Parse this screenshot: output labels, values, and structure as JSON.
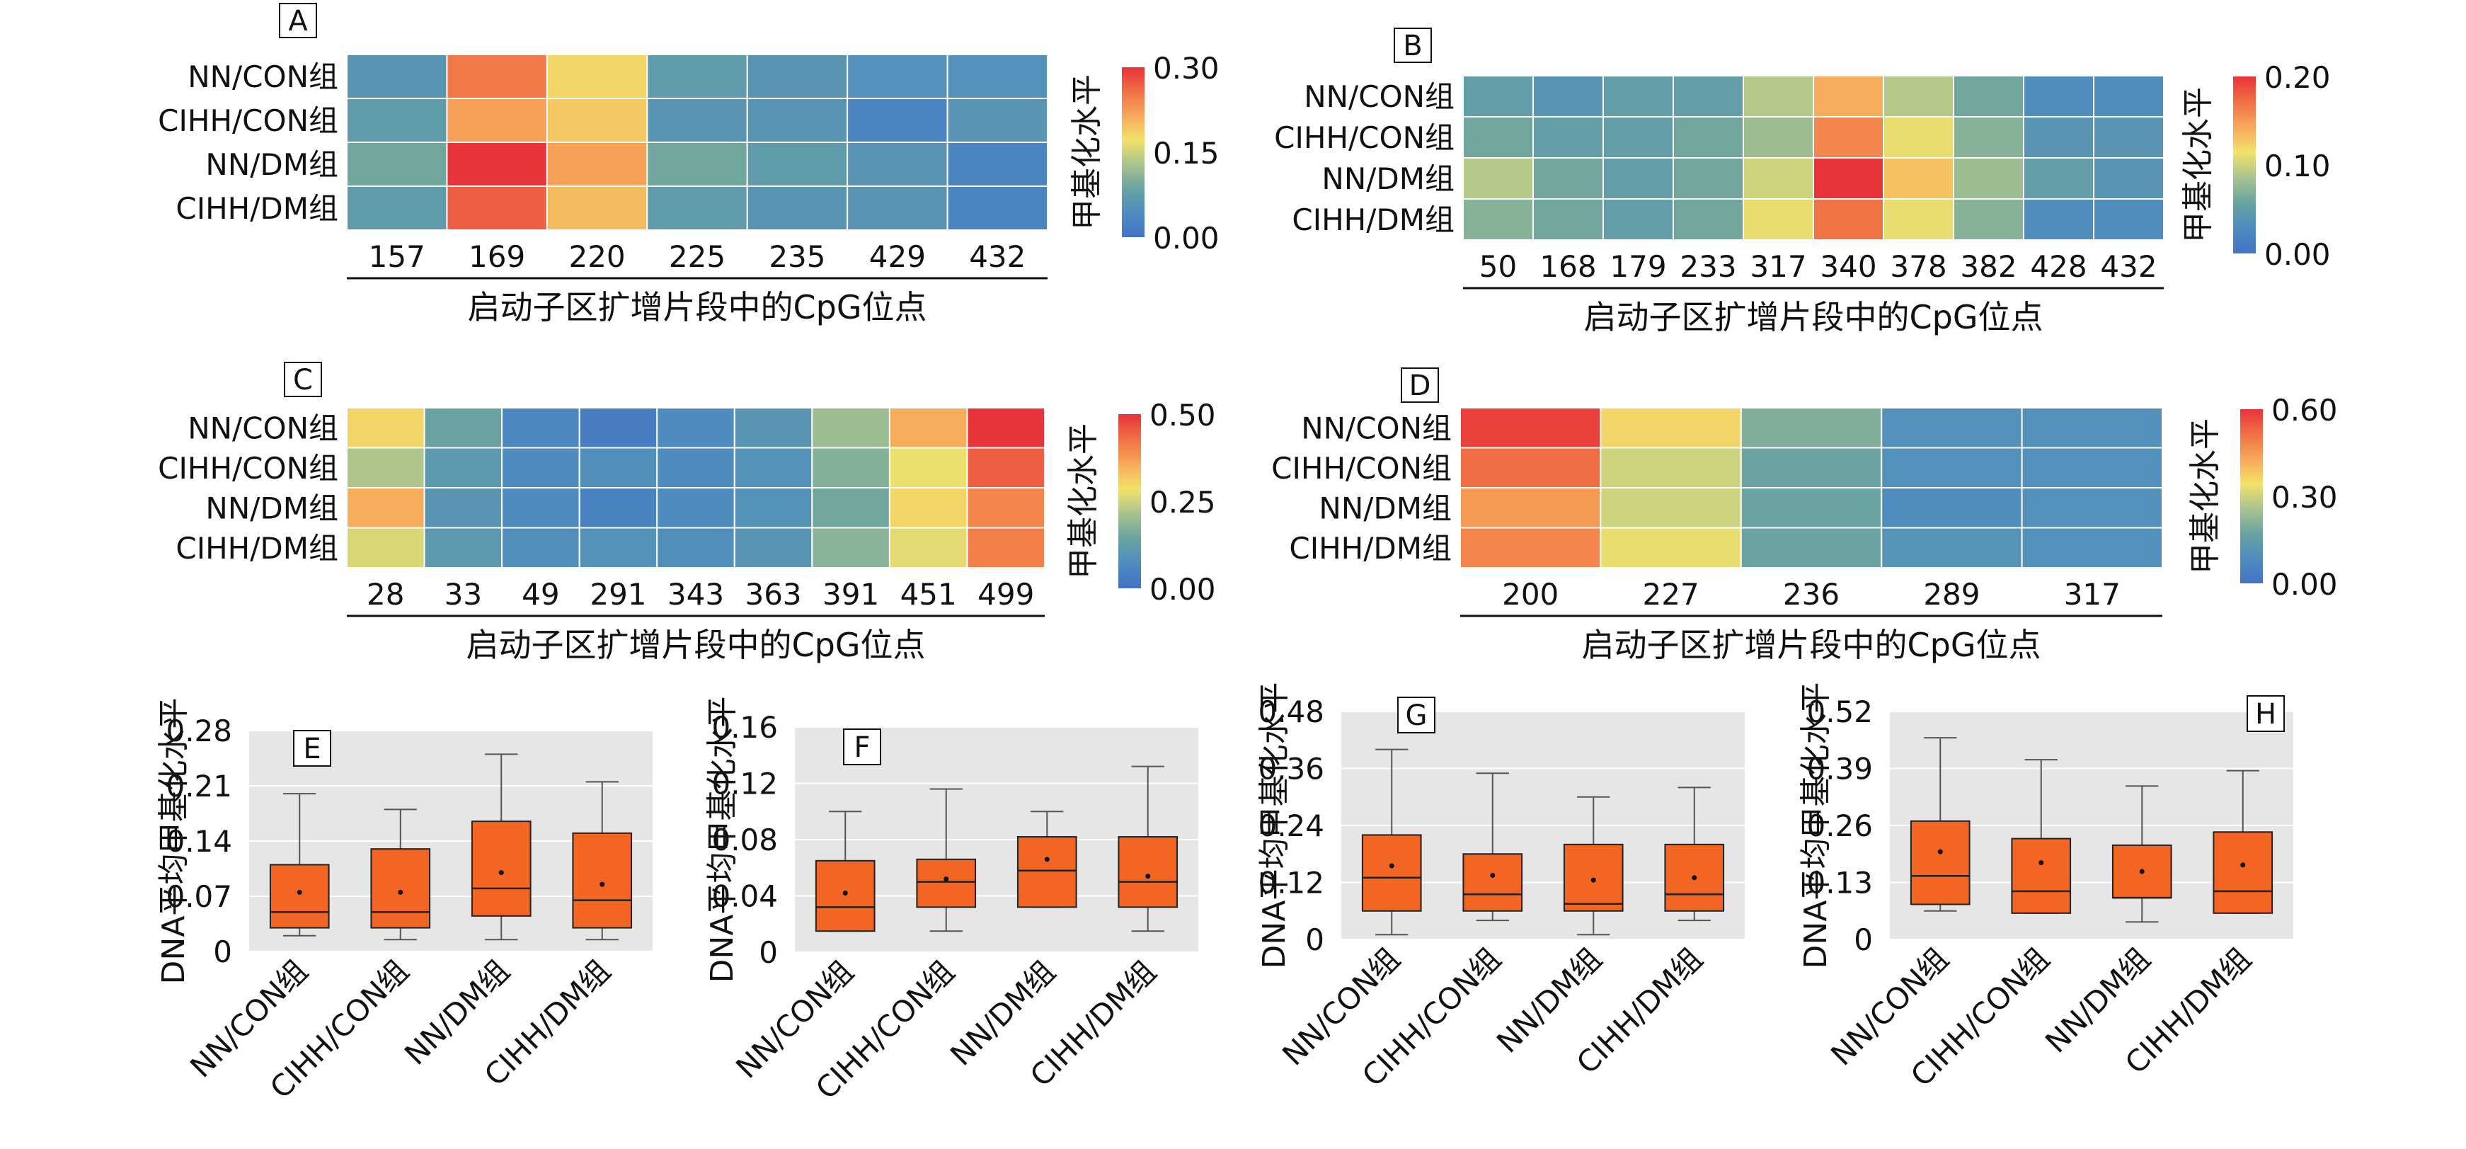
{
  "colorscale": [
    "#4472c4",
    "#4e8cbf",
    "#6aa3a0",
    "#a8c48e",
    "#f2e26a",
    "#f7a85a",
    "#f07045",
    "#e8333b"
  ],
  "box_fill": "#f26522",
  "chart_data": [
    {
      "panel": "A",
      "type": "heatmap",
      "rows": [
        "NN/CON组",
        "CIHH/CON组",
        "NN/DM组",
        "CIHH/DM组"
      ],
      "columns": [
        "157",
        "169",
        "220",
        "225",
        "235",
        "429",
        "432"
      ],
      "values": [
        [
          0.06,
          0.25,
          0.18,
          0.07,
          0.06,
          0.05,
          0.05
        ],
        [
          0.07,
          0.22,
          0.19,
          0.06,
          0.06,
          0.03,
          0.06
        ],
        [
          0.09,
          0.3,
          0.22,
          0.09,
          0.07,
          0.06,
          0.03
        ],
        [
          0.07,
          0.27,
          0.2,
          0.07,
          0.06,
          0.06,
          0.03
        ]
      ],
      "xlabel": "启动子区扩增片段中的CpG位点",
      "colorbar": {
        "label": "甲基化水平",
        "ticks": [
          "0.30",
          "0.15",
          "0.00"
        ],
        "min": 0,
        "max": 0.3
      }
    },
    {
      "panel": "B",
      "type": "heatmap",
      "rows": [
        "NN/CON组",
        "CIHH/CON组",
        "NN/DM组",
        "CIHH/DM组"
      ],
      "columns": [
        "50",
        "168",
        "179",
        "233",
        "317",
        "340",
        "378",
        "382",
        "428",
        "432"
      ],
      "values": [
        [
          0.05,
          0.04,
          0.05,
          0.05,
          0.09,
          0.14,
          0.09,
          0.06,
          0.03,
          0.03
        ],
        [
          0.06,
          0.05,
          0.05,
          0.06,
          0.08,
          0.16,
          0.11,
          0.07,
          0.04,
          0.04
        ],
        [
          0.09,
          0.06,
          0.05,
          0.06,
          0.1,
          0.21,
          0.13,
          0.08,
          0.05,
          0.04
        ],
        [
          0.07,
          0.06,
          0.05,
          0.06,
          0.11,
          0.17,
          0.11,
          0.07,
          0.03,
          0.03
        ]
      ],
      "xlabel": "启动子区扩增片段中的CpG位点",
      "colorbar": {
        "label": "甲基化水平",
        "ticks": [
          "0.20",
          "0.10",
          "0.00"
        ],
        "min": 0,
        "max": 0.2
      }
    },
    {
      "panel": "C",
      "type": "heatmap",
      "rows": [
        "NN/CON组",
        "CIHH/CON组",
        "NN/DM组",
        "CIHH/DM组"
      ],
      "columns": [
        "28",
        "33",
        "49",
        "291",
        "343",
        "363",
        "391",
        "451",
        "499"
      ],
      "values": [
        [
          0.3,
          0.14,
          0.06,
          0.03,
          0.07,
          0.1,
          0.2,
          0.35,
          0.52
        ],
        [
          0.22,
          0.11,
          0.07,
          0.08,
          0.07,
          0.09,
          0.17,
          0.28,
          0.45
        ],
        [
          0.35,
          0.1,
          0.07,
          0.04,
          0.07,
          0.09,
          0.15,
          0.3,
          0.4
        ],
        [
          0.26,
          0.11,
          0.08,
          0.09,
          0.08,
          0.1,
          0.18,
          0.27,
          0.41
        ]
      ],
      "xlabel": "启动子区扩增片段中的CpG位点",
      "colorbar": {
        "label": "甲基化水平",
        "ticks": [
          "0.50",
          "0.25",
          "0.00"
        ],
        "min": 0,
        "max": 0.5
      }
    },
    {
      "panel": "D",
      "type": "heatmap",
      "rows": [
        "NN/CON组",
        "CIHH/CON组",
        "NN/DM组",
        "CIHH/DM组"
      ],
      "columns": [
        "200",
        "227",
        "236",
        "289",
        "317"
      ],
      "values": [
        [
          0.58,
          0.36,
          0.2,
          0.1,
          0.1
        ],
        [
          0.52,
          0.3,
          0.17,
          0.1,
          0.1
        ],
        [
          0.45,
          0.3,
          0.17,
          0.09,
          0.1
        ],
        [
          0.48,
          0.33,
          0.17,
          0.11,
          0.1
        ]
      ],
      "xlabel": "启动子区扩增片段中的CpG位点",
      "colorbar": {
        "label": "甲基化水平",
        "ticks": [
          "0.60",
          "0.30",
          "0.00"
        ],
        "min": 0,
        "max": 0.6
      }
    },
    {
      "panel": "E",
      "type": "box",
      "categories": [
        "NN/CON组",
        "CIHH/CON组",
        "NN/DM组",
        "CIHH/DM组"
      ],
      "ylabel": "DNA平均甲基化水平",
      "yticks": [
        "0",
        "0.07",
        "0.14",
        "0.21",
        "0.28"
      ],
      "ylim": [
        0,
        0.28
      ],
      "boxes": [
        {
          "min": 0.02,
          "q1": 0.03,
          "median": 0.05,
          "q3": 0.11,
          "max": 0.2,
          "mean": 0.075
        },
        {
          "min": 0.015,
          "q1": 0.03,
          "median": 0.05,
          "q3": 0.13,
          "max": 0.18,
          "mean": 0.075
        },
        {
          "min": 0.015,
          "q1": 0.045,
          "median": 0.08,
          "q3": 0.165,
          "max": 0.25,
          "mean": 0.1
        },
        {
          "min": 0.015,
          "q1": 0.03,
          "median": 0.065,
          "q3": 0.15,
          "max": 0.215,
          "mean": 0.085
        }
      ]
    },
    {
      "panel": "F",
      "type": "box",
      "categories": [
        "NN/CON组",
        "CIHH/CON组",
        "NN/DM组",
        "CIHH/DM组"
      ],
      "ylabel": "DNA平均甲基化水平",
      "yticks": [
        "0",
        "0.04",
        "0.08",
        "0.12",
        "0.16"
      ],
      "ylim": [
        0,
        0.16
      ],
      "boxes": [
        {
          "min": 0.015,
          "q1": 0.015,
          "median": 0.032,
          "q3": 0.065,
          "max": 0.1,
          "mean": 0.042
        },
        {
          "min": 0.015,
          "q1": 0.032,
          "median": 0.05,
          "q3": 0.066,
          "max": 0.116,
          "mean": 0.052
        },
        {
          "min": 0.032,
          "q1": 0.032,
          "median": 0.058,
          "q3": 0.082,
          "max": 0.1,
          "mean": 0.066
        },
        {
          "min": 0.015,
          "q1": 0.032,
          "median": 0.05,
          "q3": 0.082,
          "max": 0.132,
          "mean": 0.054
        }
      ]
    },
    {
      "panel": "G",
      "type": "box",
      "categories": [
        "NN/CON组",
        "CIHH/CON组",
        "NN/DM组",
        "CIHH/DM组"
      ],
      "ylabel": "DNA平均甲基化水平",
      "yticks": [
        "0",
        "0.12",
        "0.24",
        "0.36",
        "0.48"
      ],
      "ylim": [
        0,
        0.48
      ],
      "boxes": [
        {
          "min": 0.01,
          "q1": 0.06,
          "median": 0.13,
          "q3": 0.22,
          "max": 0.4,
          "mean": 0.155
        },
        {
          "min": 0.04,
          "q1": 0.06,
          "median": 0.095,
          "q3": 0.18,
          "max": 0.35,
          "mean": 0.135
        },
        {
          "min": 0.01,
          "q1": 0.06,
          "median": 0.075,
          "q3": 0.2,
          "max": 0.3,
          "mean": 0.125
        },
        {
          "min": 0.04,
          "q1": 0.06,
          "median": 0.095,
          "q3": 0.2,
          "max": 0.32,
          "mean": 0.13
        }
      ]
    },
    {
      "panel": "H",
      "type": "box",
      "categories": [
        "NN/CON组",
        "CIHH/CON组",
        "NN/DM组",
        "CIHH/DM组"
      ],
      "ylabel": "DNA平均甲基化水平",
      "yticks": [
        "0",
        "0.13",
        "0.26",
        "0.39",
        "0.52"
      ],
      "ylim": [
        0,
        0.52
      ],
      "boxes": [
        {
          "min": 0.065,
          "q1": 0.08,
          "median": 0.145,
          "q3": 0.27,
          "max": 0.46,
          "mean": 0.2
        },
        {
          "min": 0.06,
          "q1": 0.06,
          "median": 0.11,
          "q3": 0.23,
          "max": 0.41,
          "mean": 0.175
        },
        {
          "min": 0.04,
          "q1": 0.095,
          "median": 0.095,
          "q3": 0.215,
          "max": 0.35,
          "mean": 0.155
        },
        {
          "min": 0.06,
          "q1": 0.06,
          "median": 0.11,
          "q3": 0.245,
          "max": 0.385,
          "mean": 0.17
        }
      ]
    }
  ]
}
